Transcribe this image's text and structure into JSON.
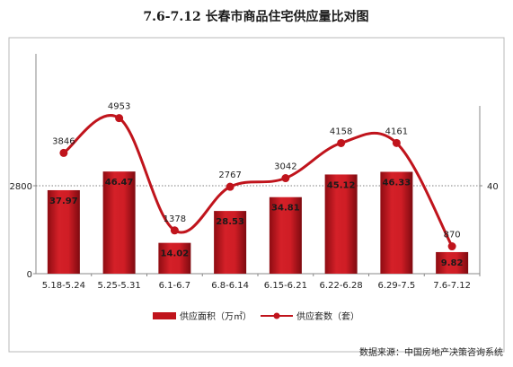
{
  "chart_data": {
    "type": "bar",
    "title": "7.6-7.12 长春市商品住宅供应量比对图",
    "categories": [
      "5.18-5.24",
      "5.25-5.31",
      "6.1-6.7",
      "6.8-6.14",
      "6.15-6.21",
      "6.22-6.28",
      "6.29-7.5",
      "7.6-7.12"
    ],
    "series": [
      {
        "name": "供应面积（万㎡）",
        "type": "bar",
        "axis": "right",
        "values": [
          37.97,
          46.47,
          14.02,
          28.53,
          34.81,
          45.12,
          46.33,
          9.82
        ],
        "labels": [
          "37.97",
          "46.47",
          "14.02",
          "28.53",
          "34.81",
          "45.12",
          "46.33",
          "9.82"
        ],
        "color": "#c0141c"
      },
      {
        "name": "供应套数（套）",
        "type": "line",
        "axis": "left",
        "values": [
          3846,
          4953,
          1378,
          2767,
          3042,
          4158,
          4161,
          870
        ],
        "labels": [
          "3846",
          "4953",
          "1378",
          "2767",
          "3042",
          "4158",
          "4161",
          "870"
        ],
        "color": "#c0141c"
      }
    ],
    "y_left": {
      "range": [
        0,
        7000
      ],
      "ticks": [
        "0",
        "2800"
      ]
    },
    "y_right": {
      "range": [
        0,
        100
      ],
      "ticks": [
        "40"
      ]
    },
    "legend_position": "bottom",
    "source": "数据来源：中国房地产决策咨询系统"
  }
}
